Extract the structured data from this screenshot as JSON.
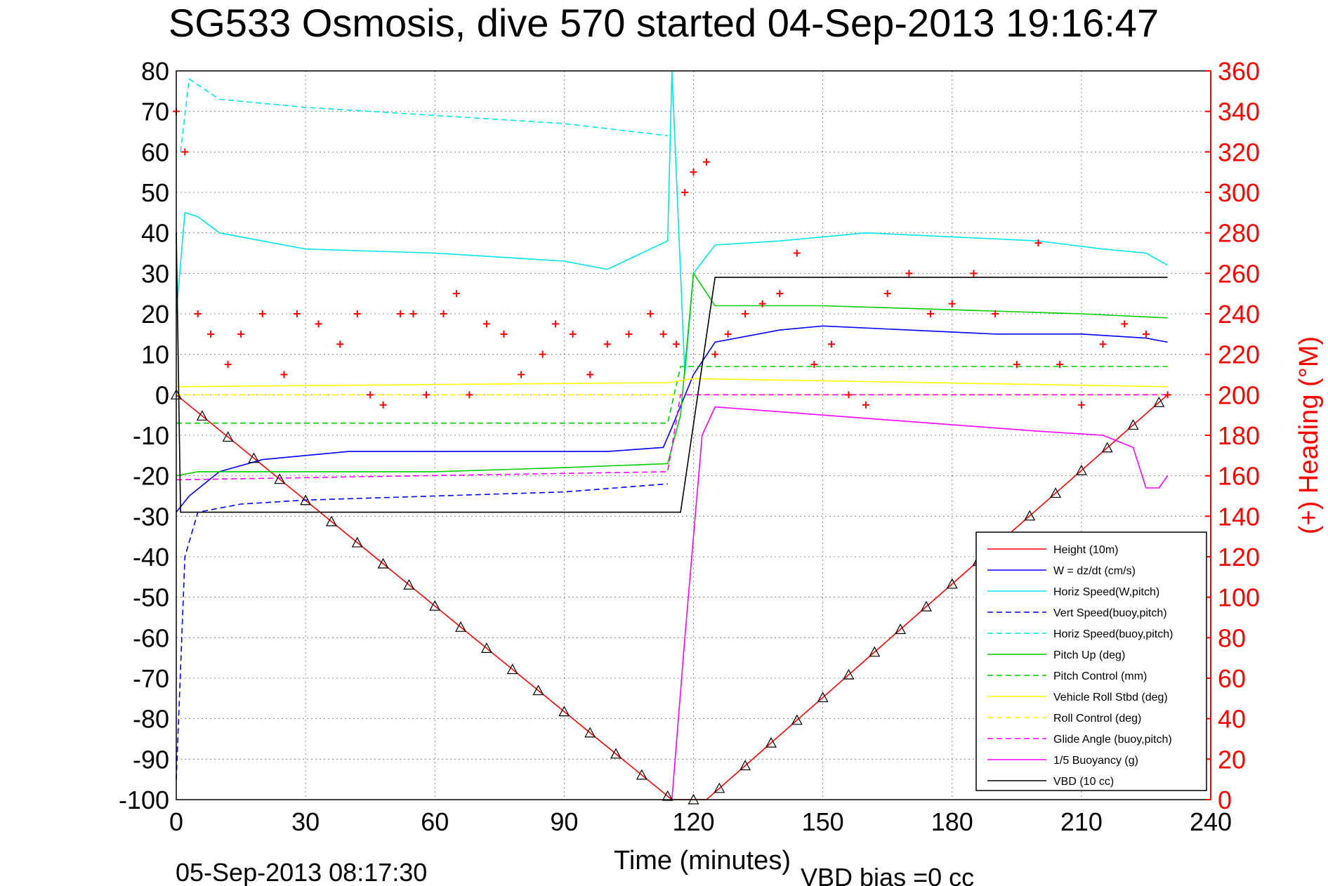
{
  "chart_data": {
    "type": "line",
    "title": "SG533 Osmosis, dive 570 started 04-Sep-2013 19:16:47",
    "xlabel": "Time (minutes)",
    "ylabel_right": "(+) Heading (°M)",
    "footer_left": "05-Sep-2013 08:17:30",
    "footer_right": "VBD bias =0 cc",
    "xlim": [
      0,
      240
    ],
    "ylim": [
      -100,
      80
    ],
    "y2lim": [
      0,
      360
    ],
    "grid": true,
    "legend_position": "bottom-right",
    "x_ticks": [
      "0",
      "30",
      "60",
      "90",
      "120",
      "150",
      "180",
      "210",
      "240"
    ],
    "y_ticks": [
      "80",
      "70",
      "60",
      "50",
      "40",
      "30",
      "20",
      "10",
      "0",
      "-10",
      "-20",
      "-30",
      "-40",
      "-50",
      "-60",
      "-70",
      "-80",
      "-90",
      "-100"
    ],
    "y2_ticks": [
      "360",
      "340",
      "320",
      "300",
      "280",
      "260",
      "240",
      "220",
      "200",
      "180",
      "160",
      "140",
      "120",
      "100",
      "80",
      "60",
      "40",
      "20",
      "0"
    ],
    "series": [
      {
        "name": "Height (10m)",
        "color": "#ff0000",
        "style": "solid",
        "x": [
          0,
          115,
          123,
          230
        ],
        "y": [
          0,
          -100,
          -100,
          0
        ]
      },
      {
        "name": "W = dz/dt (cm/s)",
        "color": "#0000ff",
        "style": "solid",
        "x": [
          0,
          3,
          10,
          20,
          30,
          40,
          60,
          80,
          100,
          113,
          115,
          120,
          125,
          140,
          150,
          170,
          190,
          210,
          225,
          230
        ],
        "y": [
          -29,
          -25,
          -19,
          -16,
          -15,
          -14,
          -14,
          -14,
          -14,
          -13,
          -8,
          5,
          13,
          16,
          17,
          16,
          15,
          15,
          14,
          13
        ]
      },
      {
        "name": "Horiz Speed(W,pitch)",
        "color": "#00e5e5",
        "style": "solid",
        "x": [
          0,
          2,
          5,
          10,
          20,
          30,
          60,
          90,
          100,
          110,
          114,
          115,
          118,
          120,
          125,
          140,
          160,
          180,
          200,
          215,
          225,
          230
        ],
        "y": [
          20,
          45,
          44,
          40,
          38,
          36,
          35,
          33,
          31,
          36,
          38,
          80,
          5,
          30,
          37,
          38,
          40,
          39,
          38,
          36,
          35,
          32
        ]
      },
      {
        "name": "Vert Speed(buoy,pitch)",
        "color": "#0000ff",
        "style": "dashed",
        "x": [
          0,
          2,
          5,
          15,
          30,
          60,
          90,
          114
        ],
        "y": [
          -95,
          -40,
          -29,
          -27,
          -26,
          -25,
          -24,
          -22
        ]
      },
      {
        "name": "Horiz Speed(buoy,pitch)",
        "color": "#00e5e5",
        "style": "dashed",
        "x": [
          1,
          3,
          10,
          30,
          60,
          90,
          114
        ],
        "y": [
          60,
          78,
          73,
          71,
          69,
          67,
          64
        ]
      },
      {
        "name": "Pitch Up (deg)",
        "color": "#00cc00",
        "style": "solid",
        "x": [
          0,
          5,
          30,
          60,
          90,
          114,
          117,
          120,
          125,
          150,
          180,
          210,
          230
        ],
        "y": [
          -20,
          -19,
          -19,
          -19,
          -18,
          -17,
          -5,
          30,
          22,
          22,
          21,
          20,
          19
        ]
      },
      {
        "name": "Pitch Control (mm)",
        "color": "#00cc00",
        "style": "dashed",
        "x": [
          0,
          114,
          117,
          230
        ],
        "y": [
          -7,
          -7,
          7,
          7
        ]
      },
      {
        "name": "Vehicle Roll Stbd (deg)",
        "color": "#ffff00",
        "style": "solid",
        "x": [
          0,
          114,
          120,
          230
        ],
        "y": [
          2,
          3,
          4,
          2
        ]
      },
      {
        "name": "Roll Control (deg)",
        "color": "#ffff00",
        "style": "dashed",
        "x": [
          0,
          230
        ],
        "y": [
          0,
          0
        ]
      },
      {
        "name": "Glide Angle (buoy,pitch)",
        "color": "#ff00ff",
        "style": "dashed",
        "x": [
          0,
          114,
          117,
          230
        ],
        "y": [
          -21,
          -19,
          0,
          0
        ]
      },
      {
        "name": "1/5 Buoyancy (g)",
        "color": "#ff00ff",
        "style": "solid",
        "x": [
          115,
          118,
          122,
          125,
          150,
          175,
          200,
          215,
          222,
          225,
          228,
          230
        ],
        "y": [
          -100,
          -60,
          -10,
          -3,
          -5,
          -7,
          -9,
          -10,
          -13,
          -23,
          -23,
          -20
        ]
      },
      {
        "name": "VBD (10 cc)",
        "color": "#000000",
        "style": "solid",
        "x": [
          0,
          1,
          114,
          117,
          125,
          230
        ],
        "y": [
          40,
          -29,
          -29,
          -29,
          29,
          29
        ]
      },
      {
        "name": "Heading",
        "color": "#ff0000",
        "style": "markers",
        "axis": "right",
        "x": [
          0,
          2,
          5,
          8,
          12,
          15,
          20,
          25,
          28,
          33,
          38,
          42,
          45,
          48,
          52,
          55,
          58,
          62,
          65,
          68,
          72,
          76,
          80,
          85,
          88,
          92,
          96,
          100,
          105,
          110,
          113,
          116,
          118,
          120,
          123,
          125,
          128,
          132,
          136,
          140,
          144,
          148,
          152,
          156,
          160,
          165,
          170,
          175,
          180,
          185,
          190,
          195,
          200,
          205,
          210,
          215,
          220,
          225,
          230
        ],
        "y": [
          340,
          320,
          240,
          230,
          215,
          230,
          240,
          210,
          240,
          235,
          225,
          240,
          200,
          195,
          240,
          240,
          200,
          240,
          250,
          200,
          235,
          230,
          210,
          220,
          235,
          230,
          210,
          225,
          230,
          240,
          230,
          225,
          300,
          310,
          315,
          220,
          230,
          240,
          245,
          250,
          270,
          215,
          225,
          200,
          195,
          250,
          260,
          240,
          245,
          260,
          240,
          215,
          275,
          215,
          195,
          225,
          235,
          230,
          200
        ]
      }
    ]
  }
}
